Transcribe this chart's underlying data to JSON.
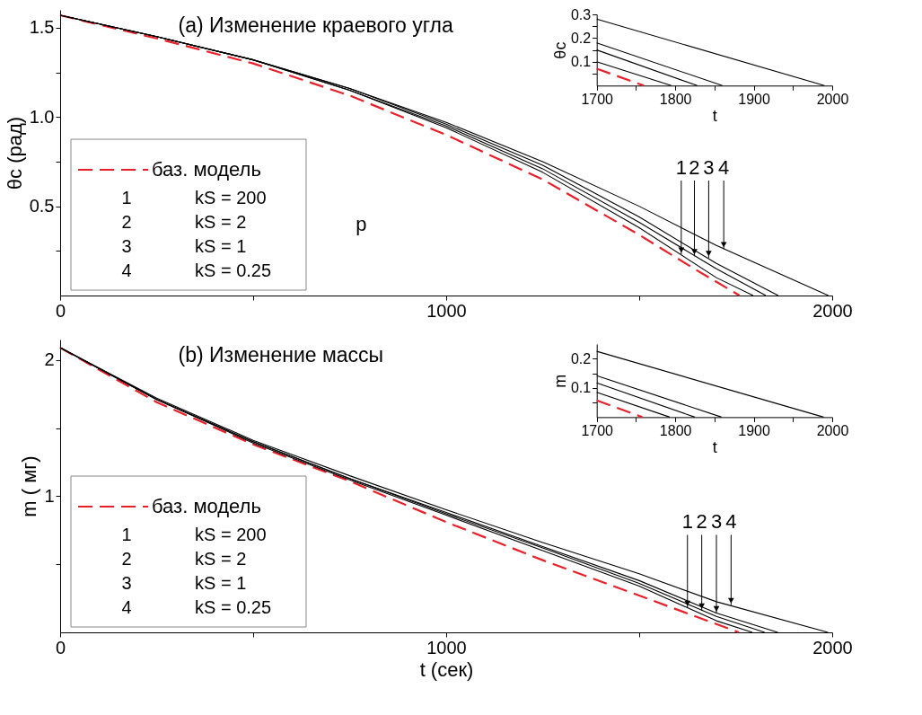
{
  "chart_data": [
    {
      "type": "line",
      "title": "(a) Изменение краевого угла",
      "ylabel": "θc (рад)",
      "xlim": [
        0,
        2000
      ],
      "ylim": [
        0,
        1.6
      ],
      "xticks": [
        0,
        {
          "value": 500,
          "label": null
        },
        1000,
        {
          "value": 1500,
          "label": null
        },
        2000
      ],
      "yticks": [
        {
          "value": 0.25,
          "label": null
        },
        0.5,
        {
          "value": 0.75,
          "label": null
        },
        {
          "value": 1,
          "label": "1.0"
        },
        {
          "value": 1.25,
          "label": null
        },
        1.5
      ],
      "legend": "bottom left",
      "series": [
        {
          "name": "баз. модель",
          "color": "#e8202a",
          "line_style": "dashed",
          "x": [
            0,
            250,
            500,
            750,
            1000,
            1250,
            1500,
            1650,
            1760
          ],
          "values": [
            1.57,
            1.44,
            1.3,
            1.12,
            0.9,
            0.65,
            0.34,
            0.14,
            0
          ]
        },
        {
          "name": "1 kS = 200",
          "color": "#000000",
          "line_style": "solid",
          "x": [
            0,
            250,
            500,
            750,
            1000,
            1250,
            1500,
            1700,
            1795
          ],
          "values": [
            1.57,
            1.45,
            1.32,
            1.15,
            0.94,
            0.69,
            0.38,
            0.1,
            0
          ]
        },
        {
          "name": "2 kS = 2",
          "color": "#000000",
          "line_style": "solid",
          "x": [
            0,
            250,
            500,
            750,
            1000,
            1250,
            1500,
            1700,
            1828
          ],
          "values": [
            1.57,
            1.45,
            1.32,
            1.15,
            0.95,
            0.71,
            0.41,
            0.15,
            0
          ]
        },
        {
          "name": "3 kS = 1",
          "color": "#000000",
          "line_style": "solid",
          "x": [
            0,
            250,
            500,
            750,
            1000,
            1250,
            1500,
            1700,
            1860
          ],
          "values": [
            1.57,
            1.45,
            1.32,
            1.16,
            0.96,
            0.73,
            0.44,
            0.18,
            0
          ]
        },
        {
          "name": "4 kS = 0.25",
          "color": "#000000",
          "line_style": "solid",
          "x": [
            0,
            250,
            500,
            750,
            1000,
            1250,
            1500,
            1700,
            1990
          ],
          "values": [
            1.57,
            1.45,
            1.32,
            1.16,
            0.97,
            0.75,
            0.5,
            0.28,
            0
          ]
        }
      ],
      "annotations": [
        "p",
        {
          "text": "1",
          "x": 1609,
          "y": 0.23
        },
        {
          "text": "2",
          "x": 1643,
          "y": 0.22
        },
        {
          "text": "3",
          "x": 1680,
          "y": 0.21
        },
        {
          "text": "4",
          "x": 1719,
          "y": 0.26
        }
      ]
    },
    {
      "type": "line",
      "xlabel": "t",
      "ylabel": "θc",
      "xlim": [
        1700,
        2000
      ],
      "ylim": [
        0,
        0.3
      ],
      "xticks": [
        1700,
        {
          "value": 1750,
          "label": null
        },
        1800,
        {
          "value": 1850,
          "label": null
        },
        1900,
        {
          "value": 1950,
          "label": null
        },
        2000
      ],
      "yticks": [
        {
          "value": 0.05,
          "label": null
        },
        0.1,
        {
          "value": 0.15,
          "label": null
        },
        0.2,
        {
          "value": 0.25,
          "label": null
        },
        0.3
      ],
      "series": [
        {
          "color": "#e8202a",
          "line_style": "dashed",
          "x": [
            1700,
            1760
          ],
          "values": [
            0.071,
            0
          ]
        },
        {
          "color": "#000000",
          "line_style": "solid",
          "x": [
            1700,
            1795
          ],
          "values": [
            0.1,
            0
          ]
        },
        {
          "color": "#000000",
          "line_style": "solid",
          "x": [
            1700,
            1828
          ],
          "values": [
            0.15,
            0
          ]
        },
        {
          "color": "#000000",
          "line_style": "solid",
          "x": [
            1700,
            1860
          ],
          "values": [
            0.18,
            0
          ]
        },
        {
          "color": "#000000",
          "line_style": "solid",
          "x": [
            1700,
            1990
          ],
          "values": [
            0.28,
            0
          ]
        }
      ]
    },
    {
      "type": "line",
      "title": "(b) Изменение массы",
      "xlabel": "t (сек)",
      "ylabel": "m ( мг)",
      "xlim": [
        0,
        2000
      ],
      "ylim": [
        0,
        2.15
      ],
      "xticks": [
        0,
        {
          "value": 500,
          "label": null
        },
        1000,
        {
          "value": 1500,
          "label": null
        },
        2000
      ],
      "yticks": [
        {
          "value": 0.5,
          "label": null
        },
        1,
        {
          "value": 1.5,
          "label": null
        },
        2
      ],
      "legend": "bottom left",
      "series": [
        {
          "name": "баз. модель",
          "color": "#e8202a",
          "line_style": "dashed",
          "x": [
            0,
            250,
            500,
            750,
            1000,
            1250,
            1500,
            1758
          ],
          "values": [
            2.09,
            1.69,
            1.38,
            1.11,
            0.81,
            0.53,
            0.27,
            0
          ]
        },
        {
          "name": "1 kS = 200",
          "color": "#000000",
          "line_style": "solid",
          "x": [
            0,
            250,
            500,
            750,
            1000,
            1250,
            1500,
            1700,
            1793
          ],
          "values": [
            2.09,
            1.71,
            1.39,
            1.12,
            0.86,
            0.6,
            0.34,
            0.085,
            0
          ]
        },
        {
          "name": "2 kS = 2",
          "color": "#000000",
          "line_style": "solid",
          "x": [
            0,
            250,
            500,
            750,
            1000,
            1250,
            1500,
            1700,
            1825
          ],
          "values": [
            2.09,
            1.71,
            1.4,
            1.13,
            0.87,
            0.62,
            0.36,
            0.117,
            0
          ]
        },
        {
          "name": "3 kS = 1",
          "color": "#000000",
          "line_style": "solid",
          "x": [
            0,
            250,
            500,
            750,
            1000,
            1250,
            1500,
            1700,
            1859
          ],
          "values": [
            2.09,
            1.71,
            1.4,
            1.13,
            0.88,
            0.63,
            0.38,
            0.142,
            0
          ]
        },
        {
          "name": "4 kS = 0.25",
          "color": "#000000",
          "line_style": "solid",
          "x": [
            0,
            250,
            500,
            750,
            1000,
            1250,
            1500,
            1700,
            1989
          ],
          "values": [
            2.09,
            1.72,
            1.41,
            1.15,
            0.9,
            0.66,
            0.43,
            0.225,
            0
          ]
        }
      ],
      "annotations": [
        {
          "text": "1",
          "x": 1625,
          "y": 0.18
        },
        {
          "text": "2",
          "x": 1662,
          "y": 0.16
        },
        {
          "text": "3",
          "x": 1700,
          "y": 0.14
        },
        {
          "text": "4",
          "x": 1738,
          "y": 0.2
        }
      ]
    },
    {
      "type": "line",
      "xlabel": "t",
      "ylabel": "m",
      "xlim": [
        1700,
        2000
      ],
      "ylim": [
        0,
        0.25
      ],
      "xticks": [
        1700,
        {
          "value": 1750,
          "label": null
        },
        1800,
        {
          "value": 1850,
          "label": null
        },
        1900,
        {
          "value": 1950,
          "label": null
        },
        2000
      ],
      "yticks": [
        {
          "value": 0.05,
          "label": null
        },
        0.1,
        {
          "value": 0.15,
          "label": null
        },
        0.2
      ],
      "series": [
        {
          "color": "#e8202a",
          "line_style": "dashed",
          "x": [
            1700,
            1758
          ],
          "values": [
            0.057,
            0
          ]
        },
        {
          "color": "#000000",
          "line_style": "solid",
          "x": [
            1700,
            1793
          ],
          "values": [
            0.085,
            0
          ]
        },
        {
          "color": "#000000",
          "line_style": "solid",
          "x": [
            1700,
            1825
          ],
          "values": [
            0.117,
            0
          ]
        },
        {
          "color": "#000000",
          "line_style": "solid",
          "x": [
            1700,
            1859
          ],
          "values": [
            0.142,
            0
          ]
        },
        {
          "color": "#000000",
          "line_style": "solid",
          "x": [
            1700,
            1989
          ],
          "values": [
            0.225,
            0
          ]
        }
      ]
    }
  ]
}
